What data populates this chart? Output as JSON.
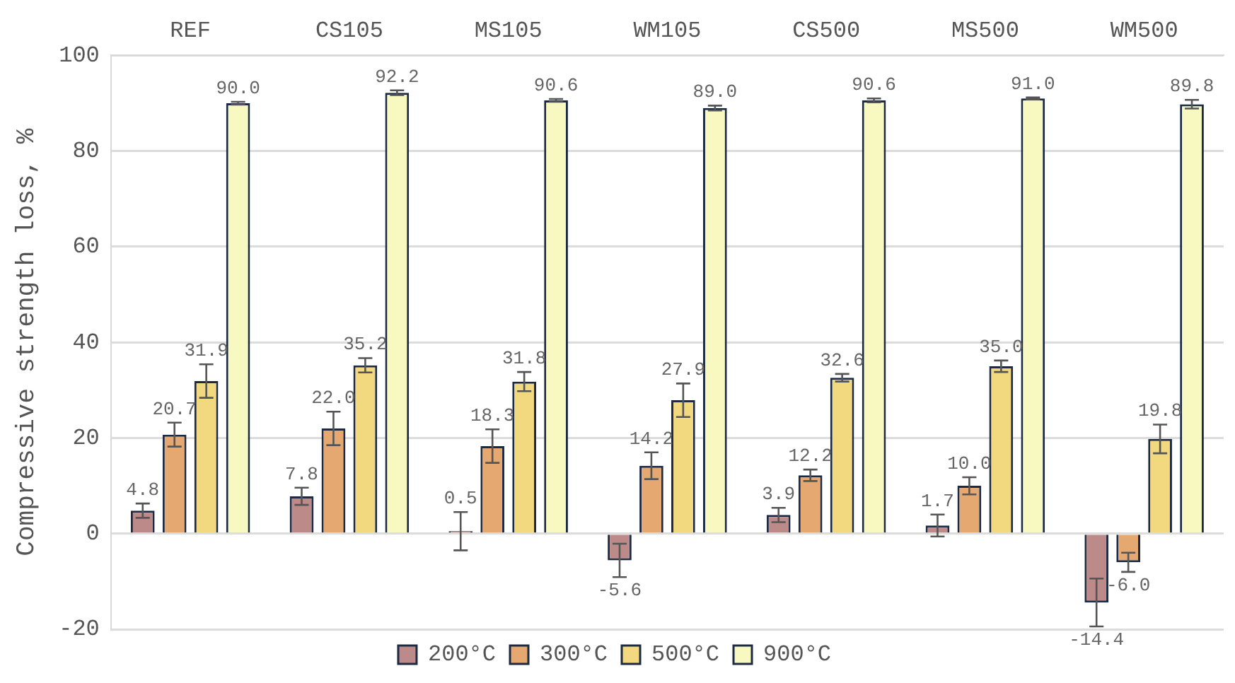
{
  "chart_data": {
    "type": "bar",
    "ylabel": "Compressive strength loss, %",
    "categories": [
      "REF",
      "CS105",
      "MS105",
      "WM105",
      "CS500",
      "MS500",
      "WM500"
    ],
    "series": [
      {
        "name": "200°C",
        "color": "#bc8a89",
        "values": [
          4.8,
          7.8,
          0.5,
          -5.6,
          3.9,
          1.7,
          -14.4
        ],
        "errors": [
          1.5,
          1.8,
          4,
          3.5,
          1.5,
          2.3,
          5
        ],
        "value_labels": [
          "4.8",
          "7.8",
          "0.5",
          "-5.6",
          "3.9",
          "1.7",
          "-14.4"
        ]
      },
      {
        "name": "300°C",
        "color": "#e5a870",
        "values": [
          20.7,
          22.0,
          18.3,
          14.2,
          12.2,
          10.0,
          -6.0
        ],
        "errors": [
          2.5,
          3.5,
          3.5,
          2.8,
          1.2,
          1.8,
          2
        ],
        "value_labels": [
          "20.7",
          "22.0",
          "18.3",
          "14.2",
          "12.2",
          "10.0",
          "-6.0"
        ]
      },
      {
        "name": "500°C",
        "color": "#f2d980",
        "values": [
          31.9,
          35.2,
          31.8,
          27.9,
          32.6,
          35.0,
          19.8
        ],
        "errors": [
          3.5,
          1.5,
          2,
          3.5,
          0.8,
          1.2,
          3
        ],
        "value_labels": [
          "31.9",
          "35.2",
          "31.8",
          "27.9",
          "32.6",
          "35.0",
          "19.8"
        ]
      },
      {
        "name": "900°C",
        "color": "#f7f9c0",
        "values": [
          90.0,
          92.2,
          90.6,
          89.0,
          90.6,
          91.0,
          89.8
        ],
        "errors": [
          0.3,
          0.5,
          0.3,
          0.5,
          0.4,
          0.2,
          0.9
        ],
        "value_labels": [
          "90.0",
          "92.2",
          "90.6",
          "89.0",
          "90.6",
          "91.0",
          "89.8"
        ]
      }
    ],
    "ylim": [
      -20,
      100
    ],
    "yticks": [
      -20,
      0,
      20,
      40,
      60,
      80,
      100
    ],
    "grid": "y",
    "legend": "bottom"
  }
}
